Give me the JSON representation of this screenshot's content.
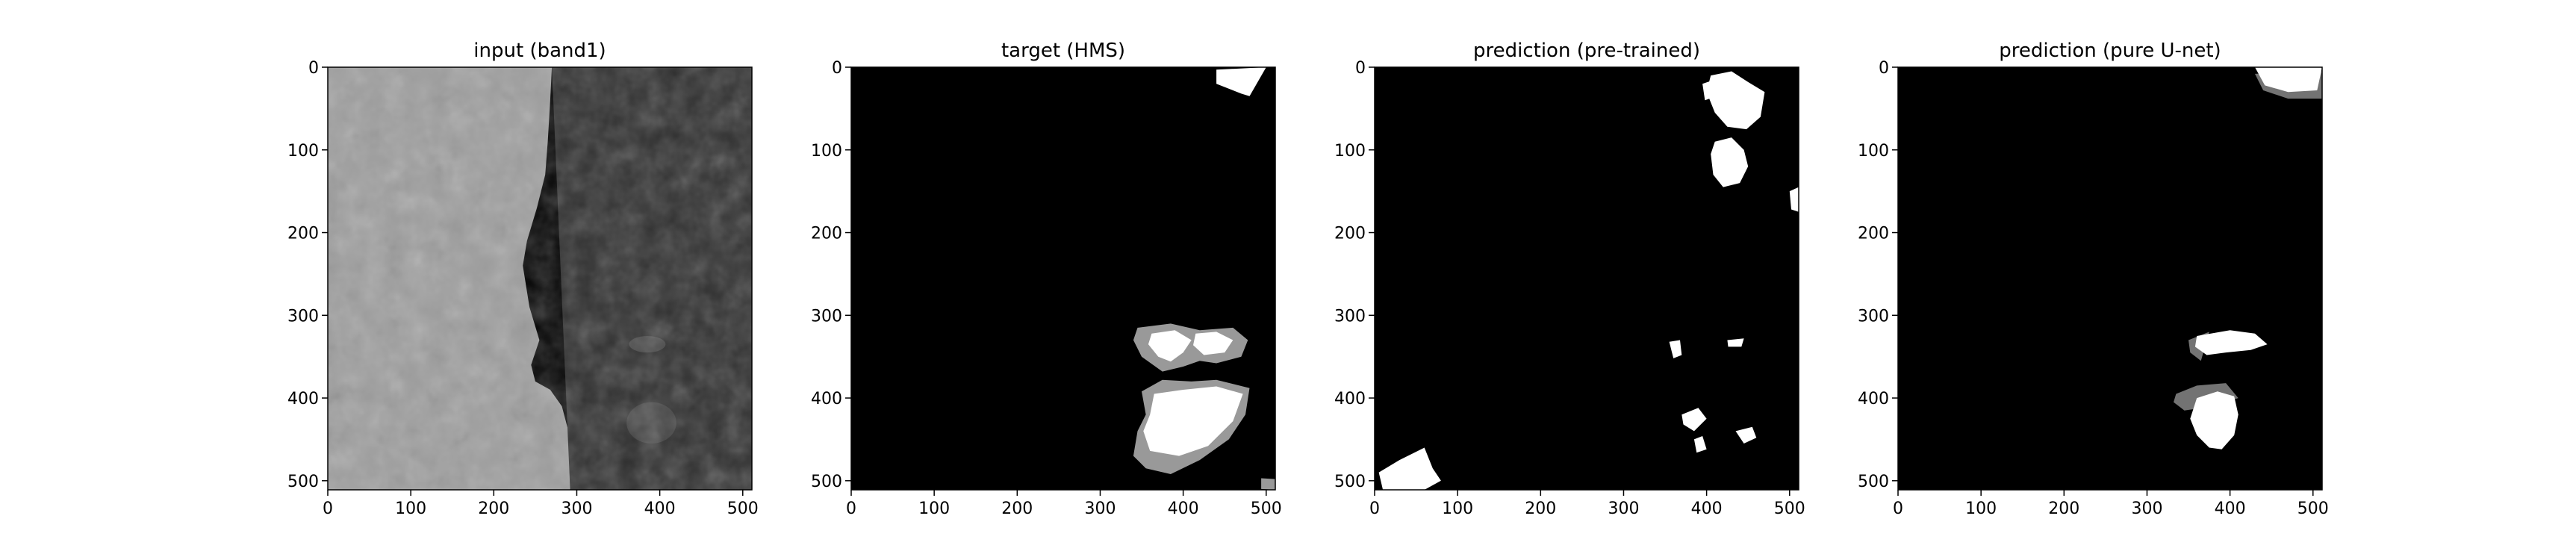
{
  "chart_data": [
    {
      "type": "heatmap",
      "title": "input (band1)",
      "colormap": "gray",
      "xlim": [
        0,
        511
      ],
      "ylim": [
        511,
        0
      ],
      "xticks": [
        "0",
        "100",
        "200",
        "300",
        "400",
        "500"
      ],
      "yticks": [
        "0",
        "100",
        "200",
        "300",
        "400",
        "500"
      ],
      "description_regions": [
        {
          "label": "bright cloud field",
          "value": 0.62,
          "polygon": [
            [
              0,
              0
            ],
            [
              270,
              0
            ],
            [
              268,
              40
            ],
            [
              265,
              90
            ],
            [
              262,
              130
            ],
            [
              252,
              170
            ],
            [
              240,
              210
            ],
            [
              235,
              240
            ],
            [
              243,
              290
            ],
            [
              255,
              330
            ],
            [
              245,
              360
            ],
            [
              250,
              380
            ],
            [
              268,
              390
            ],
            [
              282,
              410
            ],
            [
              290,
              440
            ],
            [
              295,
              470
            ],
            [
              292,
              511
            ],
            [
              0,
              511
            ]
          ]
        },
        {
          "label": "dark surface",
          "value": 0.18,
          "polygon": [
            [
              270,
              0
            ],
            [
              511,
              0
            ],
            [
              511,
              511
            ],
            [
              292,
              511
            ]
          ]
        },
        {
          "label": "smoke haze",
          "value": 0.3,
          "ellipse": [
            385,
            335,
            22,
            10
          ]
        },
        {
          "label": "smoke haze",
          "value": 0.28,
          "ellipse": [
            390,
            430,
            30,
            25
          ]
        }
      ]
    },
    {
      "type": "heatmap",
      "title": "target (HMS)",
      "colormap": "gray",
      "xlim": [
        0,
        511
      ],
      "ylim": [
        511,
        0
      ],
      "xticks": [
        "0",
        "100",
        "200",
        "300",
        "400",
        "500"
      ],
      "yticks": [
        "0",
        "100",
        "200",
        "300",
        "400",
        "500"
      ],
      "regions": [
        {
          "label": "light",
          "value": 1.0,
          "polygon": [
            [
              440,
              3
            ],
            [
              500,
              0
            ],
            [
              480,
              35
            ],
            [
              470,
              32
            ],
            [
              440,
              20
            ]
          ]
        },
        {
          "label": "medium",
          "value": 0.6,
          "polygon": [
            [
              345,
              315
            ],
            [
              385,
              310
            ],
            [
              420,
              318
            ],
            [
              460,
              315
            ],
            [
              478,
              330
            ],
            [
              470,
              350
            ],
            [
              440,
              358
            ],
            [
              420,
              355
            ],
            [
              400,
              362
            ],
            [
              375,
              368
            ],
            [
              350,
              350
            ],
            [
              340,
              330
            ]
          ]
        },
        {
          "label": "light",
          "value": 1.0,
          "polygon": [
            [
              362,
              322
            ],
            [
              390,
              318
            ],
            [
              410,
              330
            ],
            [
              400,
              345
            ],
            [
              385,
              356
            ],
            [
              370,
              350
            ],
            [
              358,
              335
            ]
          ]
        },
        {
          "label": "light",
          "value": 1.0,
          "polygon": [
            [
              415,
              322
            ],
            [
              440,
              320
            ],
            [
              460,
              330
            ],
            [
              450,
              345
            ],
            [
              425,
              348
            ],
            [
              412,
              336
            ]
          ]
        },
        {
          "label": "medium",
          "value": 0.6,
          "polygon": [
            [
              350,
              392
            ],
            [
              375,
              378
            ],
            [
              410,
              380
            ],
            [
              440,
              378
            ],
            [
              480,
              388
            ],
            [
              475,
              420
            ],
            [
              455,
              450
            ],
            [
              420,
              475
            ],
            [
              385,
              492
            ],
            [
              355,
              485
            ],
            [
              340,
              470
            ],
            [
              345,
              440
            ],
            [
              355,
              420
            ]
          ]
        },
        {
          "label": "light",
          "value": 1.0,
          "polygon": [
            [
              365,
              395
            ],
            [
              400,
              390
            ],
            [
              440,
              386
            ],
            [
              472,
              395
            ],
            [
              460,
              428
            ],
            [
              430,
              458
            ],
            [
              395,
              470
            ],
            [
              360,
              464
            ],
            [
              352,
              440
            ],
            [
              360,
              420
            ]
          ]
        },
        {
          "label": "medium",
          "value": 0.6,
          "polygon": [
            [
              494,
              497
            ],
            [
              511,
              498
            ],
            [
              511,
              511
            ],
            [
              494,
              510
            ]
          ]
        }
      ]
    },
    {
      "type": "heatmap",
      "title": "prediction (pre-trained)",
      "colormap": "gray",
      "xlim": [
        0,
        511
      ],
      "ylim": [
        511,
        0
      ],
      "xticks": [
        "0",
        "100",
        "200",
        "300",
        "400",
        "500"
      ],
      "yticks": [
        "0",
        "100",
        "200",
        "300",
        "400",
        "500"
      ],
      "regions": [
        {
          "label": "light",
          "value": 1.0,
          "polygon": [
            [
              405,
              10
            ],
            [
              430,
              5
            ],
            [
              450,
              18
            ],
            [
              470,
              30
            ],
            [
              465,
              60
            ],
            [
              448,
              75
            ],
            [
              425,
              72
            ],
            [
              410,
              55
            ],
            [
              400,
              30
            ]
          ]
        },
        {
          "label": "light",
          "value": 1.0,
          "polygon": [
            [
              410,
              90
            ],
            [
              430,
              85
            ],
            [
              445,
              100
            ],
            [
              450,
              120
            ],
            [
              440,
              140
            ],
            [
              420,
              145
            ],
            [
              408,
              130
            ],
            [
              405,
              105
            ]
          ]
        },
        {
          "label": "light",
          "value": 1.0,
          "polygon": [
            [
              395,
              20
            ],
            [
              410,
              15
            ],
            [
              412,
              35
            ],
            [
              398,
              40
            ]
          ]
        },
        {
          "label": "light",
          "value": 1.0,
          "polygon": [
            [
              500,
              150
            ],
            [
              511,
              145
            ],
            [
              511,
              175
            ],
            [
              502,
              172
            ]
          ]
        },
        {
          "label": "light",
          "value": 1.0,
          "polygon": [
            [
              355,
              332
            ],
            [
              368,
              330
            ],
            [
              370,
              348
            ],
            [
              360,
              352
            ]
          ]
        },
        {
          "label": "light",
          "value": 1.0,
          "polygon": [
            [
              425,
              330
            ],
            [
              445,
              328
            ],
            [
              442,
              338
            ],
            [
              426,
              338
            ]
          ]
        },
        {
          "label": "light",
          "value": 1.0,
          "polygon": [
            [
              435,
              440
            ],
            [
              455,
              435
            ],
            [
              460,
              448
            ],
            [
              445,
              455
            ]
          ]
        },
        {
          "label": "light",
          "value": 1.0,
          "polygon": [
            [
              5,
              490
            ],
            [
              30,
              475
            ],
            [
              60,
              460
            ],
            [
              70,
              485
            ],
            [
              80,
              500
            ],
            [
              60,
              511
            ],
            [
              10,
              511
            ]
          ]
        },
        {
          "label": "light",
          "value": 1.0,
          "polygon": [
            [
              370,
              420
            ],
            [
              390,
              412
            ],
            [
              400,
              425
            ],
            [
              385,
              440
            ],
            [
              372,
              432
            ]
          ]
        },
        {
          "label": "light",
          "value": 1.0,
          "polygon": [
            [
              385,
              450
            ],
            [
              395,
              446
            ],
            [
              400,
              462
            ],
            [
              388,
              466
            ]
          ]
        }
      ]
    },
    {
      "type": "heatmap",
      "title": "prediction (pure U-net)",
      "colormap": "gray",
      "xlim": [
        0,
        511
      ],
      "ylim": [
        511,
        0
      ],
      "xticks": [
        "0",
        "100",
        "200",
        "300",
        "400",
        "500"
      ],
      "yticks": [
        "0",
        "100",
        "200",
        "300",
        "400",
        "500"
      ],
      "regions": [
        {
          "label": "medium",
          "value": 0.45,
          "polygon": [
            [
              430,
              8
            ],
            [
              511,
              5
            ],
            [
              511,
              38
            ],
            [
              470,
              38
            ],
            [
              440,
              28
            ]
          ]
        },
        {
          "label": "light",
          "value": 1.0,
          "polygon": [
            [
              430,
              0
            ],
            [
              511,
              0
            ],
            [
              505,
              28
            ],
            [
              470,
              30
            ],
            [
              442,
              22
            ]
          ]
        },
        {
          "label": "medium",
          "value": 0.45,
          "polygon": [
            [
              350,
              330
            ],
            [
              375,
              320
            ],
            [
              365,
              355
            ],
            [
              352,
              345
            ]
          ]
        },
        {
          "label": "light",
          "value": 1.0,
          "polygon": [
            [
              360,
              325
            ],
            [
              400,
              318
            ],
            [
              430,
              322
            ],
            [
              445,
              335
            ],
            [
              425,
              342
            ],
            [
              395,
              345
            ],
            [
              372,
              348
            ],
            [
              358,
              338
            ]
          ]
        },
        {
          "label": "medium",
          "value": 0.45,
          "polygon": [
            [
              335,
              395
            ],
            [
              360,
              385
            ],
            [
              395,
              382
            ],
            [
              410,
              400
            ],
            [
              380,
              410
            ],
            [
              345,
              415
            ],
            [
              332,
              405
            ]
          ]
        },
        {
          "label": "light",
          "value": 1.0,
          "polygon": [
            [
              360,
              400
            ],
            [
              385,
              392
            ],
            [
              405,
              398
            ],
            [
              410,
              420
            ],
            [
              405,
              445
            ],
            [
              390,
              462
            ],
            [
              375,
              460
            ],
            [
              360,
              445
            ],
            [
              352,
              425
            ]
          ]
        }
      ]
    }
  ]
}
